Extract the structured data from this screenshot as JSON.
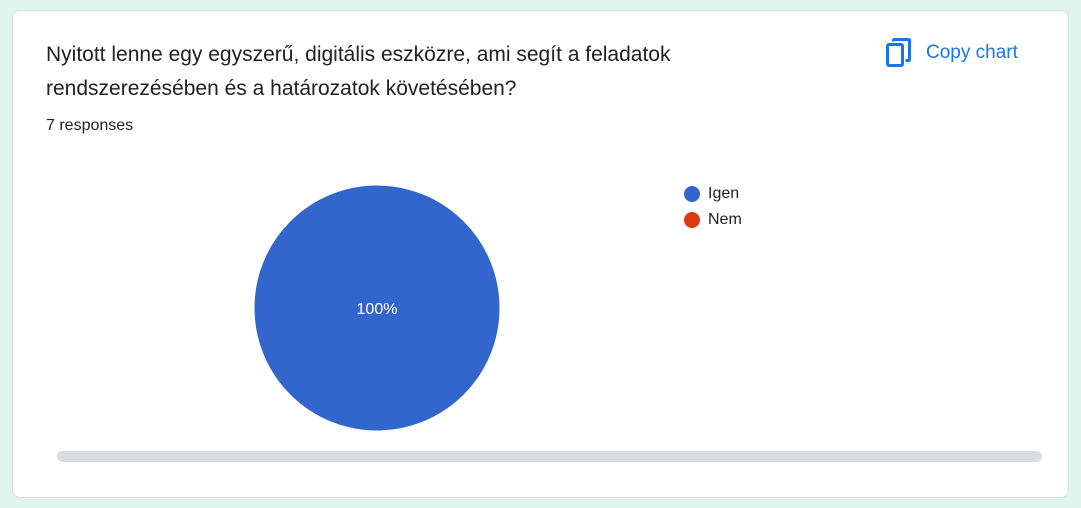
{
  "question": {
    "title": "Nyitott lenne egy egyszerű, digitális eszközre, ami segít a feladatok rendszerezésében és a határozatok követésében?",
    "responses": "7 responses"
  },
  "actions": {
    "copy_chart_label": "Copy chart",
    "copy_chart_icon": "copy-icon"
  },
  "colors": {
    "accent": "#1a73e8",
    "background": "#e0f5ee"
  },
  "chart_data": {
    "type": "pie",
    "categories": [
      "Igen",
      "Nem"
    ],
    "values": [
      100,
      0
    ],
    "colors": [
      "#3366cc",
      "#dc3912"
    ],
    "data_labels": [
      "100%",
      ""
    ],
    "legend_position": "right"
  }
}
